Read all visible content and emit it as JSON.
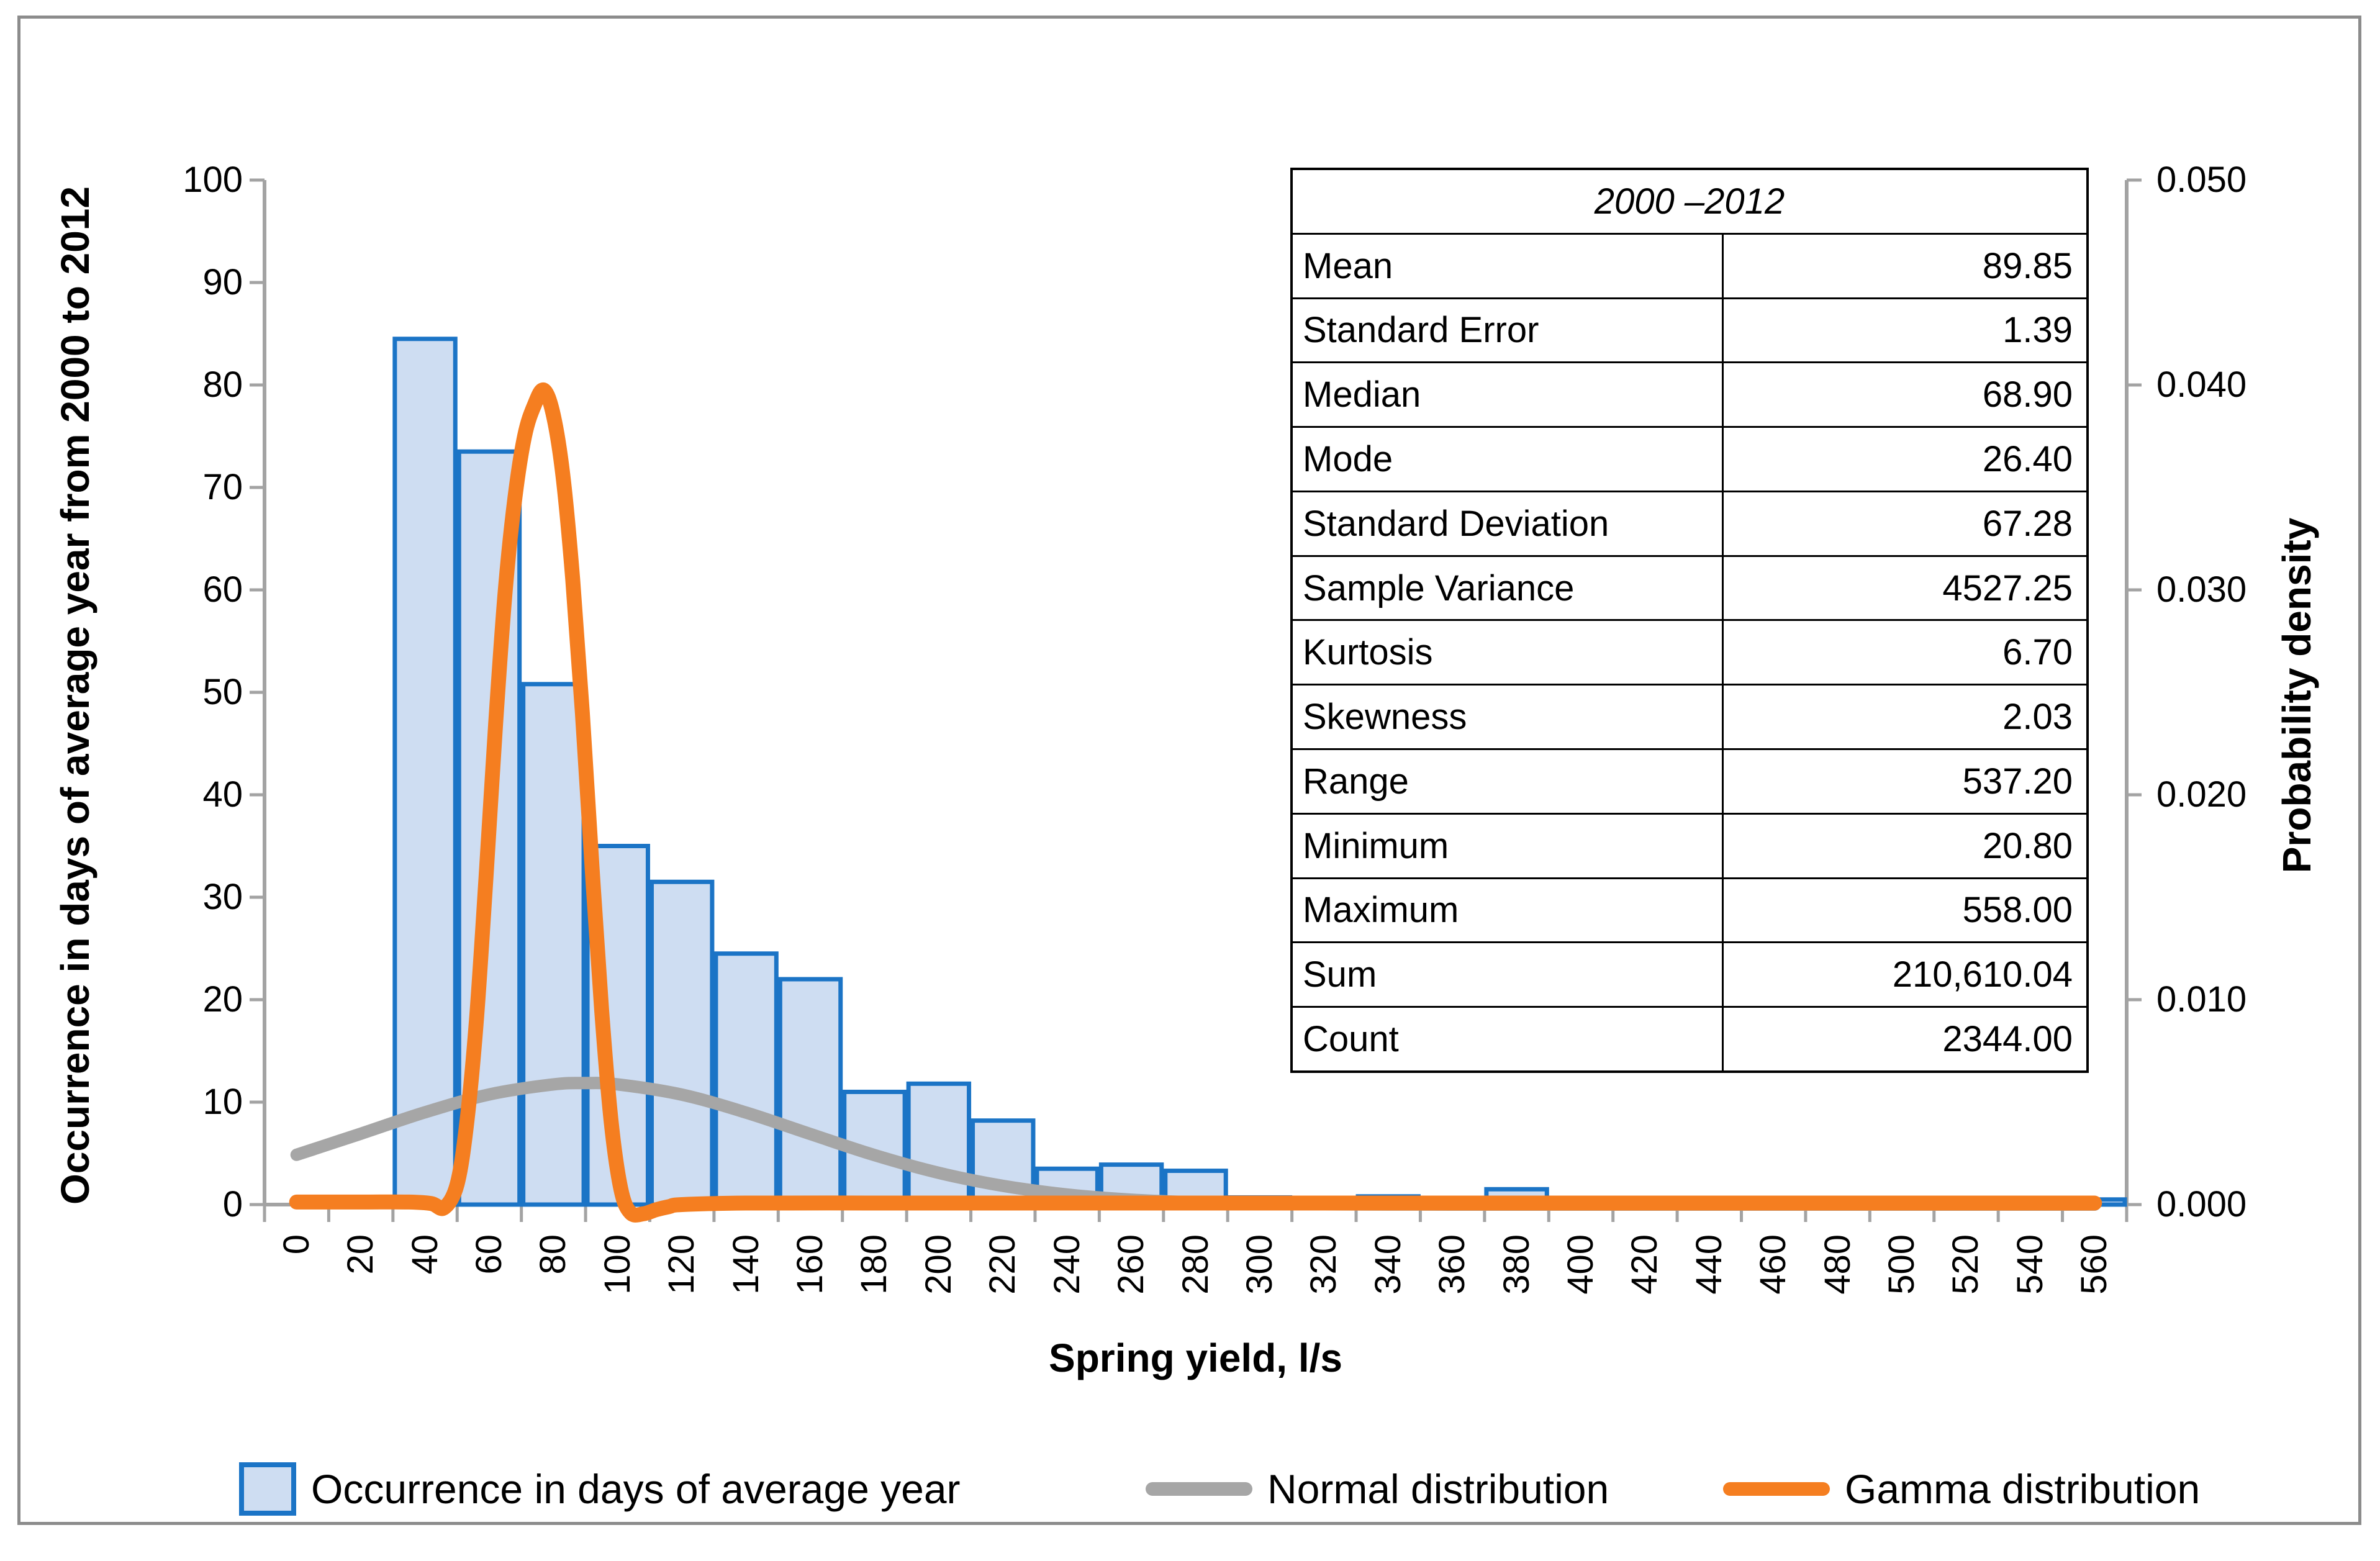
{
  "chart_data": {
    "type": "bar",
    "title": "",
    "xlabel": "Spring yield, l/s",
    "ylabel_left": "Occurrence in days of average year from 2000 to 2012",
    "ylabel_right": "Probability density",
    "grid": false,
    "legend_position": "bottom",
    "categories": [
      "0",
      "20",
      "40",
      "60",
      "80",
      "100",
      "120",
      "140",
      "160",
      "180",
      "200",
      "220",
      "240",
      "260",
      "280",
      "300",
      "320",
      "340",
      "360",
      "380",
      "400",
      "420",
      "440",
      "460",
      "480",
      "500",
      "520",
      "540",
      "560"
    ],
    "bar_series": {
      "name": "Occurrence in days of average year",
      "values": [
        0,
        0,
        84.5,
        73.5,
        50.8,
        35,
        31.5,
        24.5,
        22,
        11,
        11.8,
        8.2,
        3.5,
        3.9,
        3.3,
        0.7,
        0.5,
        0.8,
        0,
        1.5,
        0,
        0.5,
        0,
        0.3,
        0,
        0,
        0,
        0,
        0.5
      ]
    },
    "line_series": [
      {
        "name": "Normal distribution",
        "color": "#A6A6A6",
        "width": 20,
        "points": [
          [
            0,
            4.86
          ],
          [
            20,
            6.92
          ],
          [
            40,
            9.01
          ],
          [
            60,
            10.75
          ],
          [
            80,
            11.73
          ],
          [
            90,
            11.86
          ],
          [
            100,
            11.73
          ],
          [
            120,
            10.73
          ],
          [
            140,
            8.98
          ],
          [
            160,
            6.89
          ],
          [
            180,
            4.83
          ],
          [
            200,
            3.1
          ],
          [
            220,
            1.83
          ],
          [
            240,
            0.98
          ],
          [
            260,
            0.48
          ],
          [
            280,
            0.22
          ],
          [
            300,
            0.09
          ],
          [
            320,
            0.03
          ],
          [
            340,
            0.01
          ],
          [
            360,
            0
          ],
          [
            400,
            0
          ],
          [
            440,
            0
          ],
          [
            480,
            0
          ],
          [
            520,
            0
          ],
          [
            560,
            0
          ]
        ]
      },
      {
        "name": "Gamma distribution",
        "color": "#F57E20",
        "width": 24,
        "points": [
          [
            0,
            0.25
          ],
          [
            20,
            0.25
          ],
          [
            35,
            0.25
          ],
          [
            42,
            0.1
          ],
          [
            46,
            -0.3
          ],
          [
            50,
            2
          ],
          [
            53,
            8
          ],
          [
            56,
            18
          ],
          [
            59,
            32
          ],
          [
            62,
            47
          ],
          [
            65,
            60
          ],
          [
            68,
            69
          ],
          [
            71,
            75
          ],
          [
            74,
            78
          ],
          [
            77,
            79.5
          ],
          [
            80,
            77
          ],
          [
            83,
            71
          ],
          [
            86,
            61
          ],
          [
            89,
            48
          ],
          [
            92,
            33
          ],
          [
            95,
            19
          ],
          [
            98,
            8
          ],
          [
            101,
            1.5
          ],
          [
            104,
            -0.8
          ],
          [
            108,
            -0.9
          ],
          [
            112,
            -0.5
          ],
          [
            116,
            -0.2
          ],
          [
            120,
            0
          ],
          [
            140,
            0.15
          ],
          [
            180,
            0.15
          ],
          [
            220,
            0.15
          ],
          [
            260,
            0.15
          ],
          [
            300,
            0.15
          ],
          [
            340,
            0.15
          ],
          [
            380,
            0.15
          ],
          [
            420,
            0.15
          ],
          [
            460,
            0.15
          ],
          [
            500,
            0.15
          ],
          [
            530,
            0.15
          ],
          [
            560,
            0.15
          ]
        ]
      }
    ],
    "ylim_left": [
      0,
      100
    ],
    "yticks_left": [
      "0",
      "10",
      "20",
      "30",
      "40",
      "50",
      "60",
      "70",
      "80",
      "90",
      "100"
    ],
    "ylim_right": [
      0,
      0.05
    ],
    "yticks_right": [
      "0.000",
      "0.010",
      "0.020",
      "0.030",
      "0.040",
      "0.050"
    ],
    "colors": {
      "bar_fill": "#CEDDF2",
      "bar_border": "#1B74C6",
      "axis": "#A3A3A3",
      "normal_line": "#A6A6A6",
      "gamma_line": "#F57E20"
    }
  },
  "stats_table": {
    "title": "2000 –2012",
    "rows": [
      [
        "Mean",
        "89.85"
      ],
      [
        "Standard Error",
        "1.39"
      ],
      [
        "Median",
        "68.90"
      ],
      [
        "Mode",
        "26.40"
      ],
      [
        "Standard Deviation",
        "67.28"
      ],
      [
        "Sample Variance",
        "4527.25"
      ],
      [
        "Kurtosis",
        "6.70"
      ],
      [
        "Skewness",
        "2.03"
      ],
      [
        "Range",
        "537.20"
      ],
      [
        "Minimum",
        "20.80"
      ],
      [
        "Maximum",
        "558.00"
      ],
      [
        "Sum",
        "210,610.04"
      ],
      [
        "Count",
        "2344.00"
      ]
    ]
  },
  "legend": {
    "items": [
      {
        "label": "Occurrence in days of average year",
        "marker": "bar-swatch"
      },
      {
        "label": "Normal distribution",
        "marker": "gray-line"
      },
      {
        "label": "Gamma distribution",
        "marker": "orange-line"
      }
    ]
  }
}
